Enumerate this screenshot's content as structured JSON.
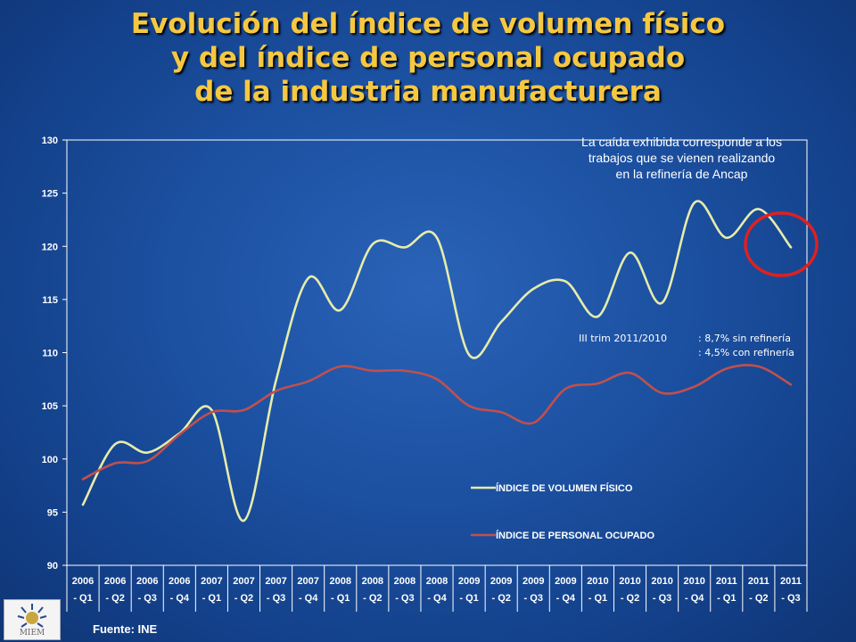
{
  "title": {
    "line1": "Evolución del índice de volumen físico",
    "line2": "y del índice de personal ocupado",
    "line3": "de la industria manufacturera"
  },
  "annotations": {
    "note_line1": "La caída exhibida corresponde a los",
    "note_line2": "trabajos que se vienen  realizando",
    "note_line3": "en la refinería de Ancap",
    "stat_label": "III trim 2011/2010",
    "stat_line1": ": 8,7% sin refinería",
    "stat_line2": ": 4,5% con refinería",
    "highlight_color": "#e02020"
  },
  "source": "Fuente: INE",
  "logo": {
    "text": "MIEM",
    "icon": "miem-sun-logo-icon"
  },
  "chart_data": {
    "type": "line",
    "categories": [
      [
        "2006",
        "- Q1"
      ],
      [
        "2006",
        "- Q2"
      ],
      [
        "2006",
        "- Q3"
      ],
      [
        "2006",
        "- Q4"
      ],
      [
        "2007",
        "- Q1"
      ],
      [
        "2007",
        "- Q2"
      ],
      [
        "2007",
        "- Q3"
      ],
      [
        "2007",
        "- Q4"
      ],
      [
        "2008",
        "- Q1"
      ],
      [
        "2008",
        "- Q2"
      ],
      [
        "2008",
        "- Q3"
      ],
      [
        "2008",
        "- Q4"
      ],
      [
        "2009",
        "- Q1"
      ],
      [
        "2009",
        "- Q2"
      ],
      [
        "2009",
        "- Q3"
      ],
      [
        "2009",
        "- Q4"
      ],
      [
        "2010",
        "- Q1"
      ],
      [
        "2010",
        "- Q2"
      ],
      [
        "2010",
        "- Q3"
      ],
      [
        "2010",
        "- Q4"
      ],
      [
        "2011",
        "- Q1"
      ],
      [
        "2011",
        "- Q2"
      ],
      [
        "2011",
        "- Q3"
      ]
    ],
    "series": [
      {
        "name": "ÍNDICE DE VOLUMEN FÍSICO",
        "color": "#e6ecaa",
        "values": [
          95.7,
          101.4,
          100.6,
          102.4,
          104.6,
          94.2,
          107.4,
          117.0,
          114.0,
          120.2,
          119.9,
          120.8,
          109.8,
          112.9,
          116.0,
          116.7,
          113.4,
          119.4,
          114.7,
          124.1,
          120.8,
          123.5,
          119.9
        ]
      },
      {
        "name": "ÍNDICE DE PERSONAL OCUPADO",
        "color": "#c0504d",
        "values": [
          98.1,
          99.6,
          99.8,
          102.3,
          104.4,
          104.6,
          106.4,
          107.3,
          108.7,
          108.3,
          108.3,
          107.5,
          105.0,
          104.4,
          103.4,
          106.6,
          107.1,
          108.1,
          106.2,
          106.8,
          108.5,
          108.7,
          107.0
        ]
      }
    ],
    "yticks": [
      90,
      95,
      100,
      105,
      110,
      115,
      120,
      125,
      130
    ],
    "ylim": [
      90,
      130
    ],
    "grid": false,
    "legend_position": "bottom-right"
  }
}
